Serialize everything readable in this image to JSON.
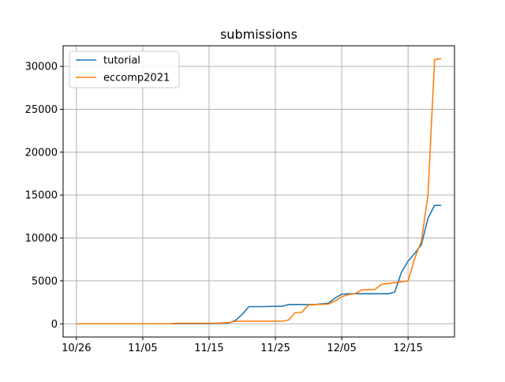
{
  "chart_data": {
    "type": "line",
    "title": "submissions",
    "xlabel": "",
    "ylabel": "",
    "grid": true,
    "legend_position": "top-left",
    "x_tick_labels": [
      "10/26",
      "11/05",
      "11/15",
      "11/25",
      "12/05",
      "12/15"
    ],
    "x_tick_dates": [
      "2021-10-26",
      "2021-11-05",
      "2021-11-15",
      "2021-11-25",
      "2021-12-05",
      "2021-12-15"
    ],
    "y_ticks": [
      0,
      5000,
      10000,
      15000,
      20000,
      25000,
      30000
    ],
    "xlim": [
      "2021-10-24",
      "2021-12-22"
    ],
    "ylim": [
      -1540,
      32400
    ],
    "series": [
      {
        "name": "tutorial",
        "color": "#1f77b4",
        "points": [
          [
            "2021-10-26",
            0
          ],
          [
            "2021-11-09",
            0
          ],
          [
            "2021-11-15",
            0
          ],
          [
            "2021-11-18",
            100
          ],
          [
            "2021-11-19",
            400
          ],
          [
            "2021-11-20",
            1100
          ],
          [
            "2021-11-21",
            2000
          ],
          [
            "2021-11-23",
            2000
          ],
          [
            "2021-11-26",
            2050
          ],
          [
            "2021-11-27",
            2250
          ],
          [
            "2021-12-01",
            2250
          ],
          [
            "2021-12-03",
            2400
          ],
          [
            "2021-12-04",
            3000
          ],
          [
            "2021-12-05",
            3450
          ],
          [
            "2021-12-06",
            3500
          ],
          [
            "2021-12-12",
            3500
          ],
          [
            "2021-12-13",
            3700
          ],
          [
            "2021-12-14",
            6000
          ],
          [
            "2021-12-15",
            7300
          ],
          [
            "2021-12-16",
            8200
          ],
          [
            "2021-12-17",
            9200
          ],
          [
            "2021-12-18",
            12300
          ],
          [
            "2021-12-19",
            13800
          ],
          [
            "2021-12-20",
            13800
          ]
        ]
      },
      {
        "name": "eccomp2021",
        "color": "#ff7f0e",
        "points": [
          [
            "2021-10-26",
            0
          ],
          [
            "2021-11-09",
            0
          ],
          [
            "2021-11-10",
            50
          ],
          [
            "2021-11-16",
            60
          ],
          [
            "2021-11-18",
            150
          ],
          [
            "2021-11-19",
            300
          ],
          [
            "2021-11-26",
            300
          ],
          [
            "2021-11-27",
            450
          ],
          [
            "2021-11-28",
            1300
          ],
          [
            "2021-11-29",
            1350
          ],
          [
            "2021-11-30",
            2200
          ],
          [
            "2021-12-03",
            2300
          ],
          [
            "2021-12-04",
            2650
          ],
          [
            "2021-12-05",
            3150
          ],
          [
            "2021-12-06",
            3400
          ],
          [
            "2021-12-07",
            3500
          ],
          [
            "2021-12-08",
            3950
          ],
          [
            "2021-12-10",
            4000
          ],
          [
            "2021-12-11",
            4600
          ],
          [
            "2021-12-12",
            4700
          ],
          [
            "2021-12-13",
            4800
          ],
          [
            "2021-12-14",
            4900
          ],
          [
            "2021-12-15",
            5000
          ],
          [
            "2021-12-16",
            7600
          ],
          [
            "2021-12-17",
            9600
          ],
          [
            "2021-12-18",
            15000
          ],
          [
            "2021-12-19",
            30800
          ],
          [
            "2021-12-20",
            30900
          ]
        ]
      }
    ]
  }
}
